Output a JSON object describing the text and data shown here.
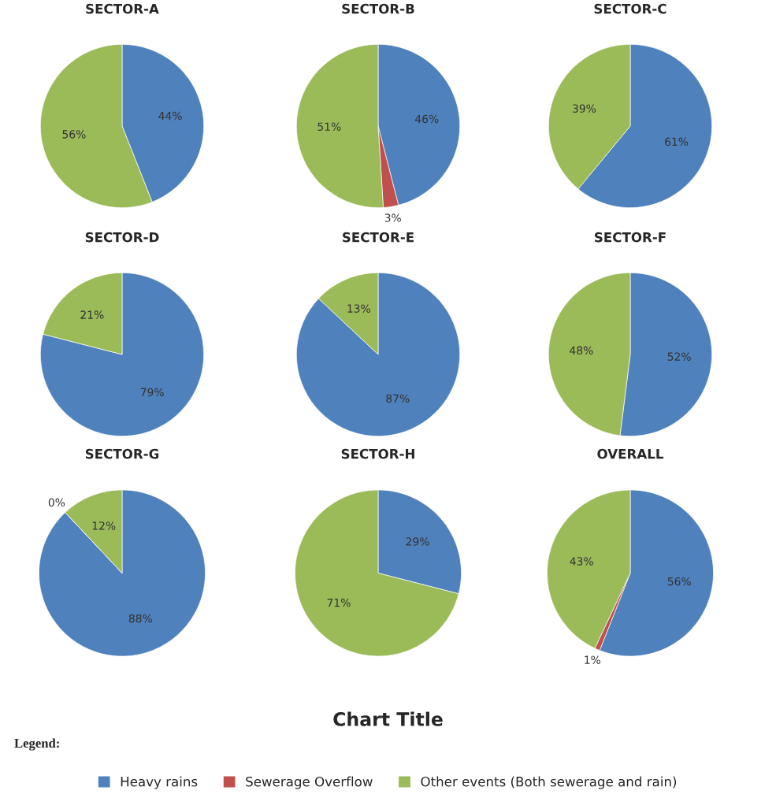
{
  "chart_data": [
    {
      "type": "pie",
      "title": "SECTOR-A",
      "categories": [
        null,
        null
      ],
      "values": [
        44,
        56
      ],
      "colors": [
        "#4f81bd",
        "#9bbb59"
      ],
      "value_labels": [
        "44%",
        "56%"
      ]
    },
    {
      "type": "pie",
      "title": "SECTOR-B",
      "categories": [
        null,
        null,
        null
      ],
      "values": [
        46,
        3,
        51
      ],
      "colors": [
        "#4f81bd",
        "#c0504d",
        "#9bbb59"
      ],
      "value_labels": [
        "46%",
        "3%",
        "51%"
      ]
    },
    {
      "type": "pie",
      "title": "SECTOR-C",
      "categories": [
        null,
        null
      ],
      "values": [
        61,
        39
      ],
      "colors": [
        "#4f81bd",
        "#9bbb59"
      ],
      "value_labels": [
        "61%",
        "39%"
      ]
    },
    {
      "type": "pie",
      "title": "SECTOR-D",
      "categories": [
        null,
        null
      ],
      "values": [
        79,
        21
      ],
      "colors": [
        "#4f81bd",
        "#9bbb59"
      ],
      "value_labels": [
        "79%",
        "21%"
      ]
    },
    {
      "type": "pie",
      "title": "SECTOR-E",
      "categories": [
        null,
        null
      ],
      "values": [
        87,
        13
      ],
      "colors": [
        "#4f81bd",
        "#9bbb59"
      ],
      "value_labels": [
        "87%",
        "13%"
      ]
    },
    {
      "type": "pie",
      "title": "SECTOR-F",
      "categories": [
        null,
        null
      ],
      "values": [
        52,
        48
      ],
      "colors": [
        "#4f81bd",
        "#9bbb59"
      ],
      "value_labels": [
        "52%",
        "48%"
      ]
    },
    {
      "type": "pie",
      "title": "SECTOR-G",
      "categories": [
        null,
        null,
        null
      ],
      "values": [
        88,
        0,
        12
      ],
      "colors": [
        "#4f81bd",
        "#c0504d",
        "#9bbb59"
      ],
      "value_labels": [
        "88%",
        "0%",
        "12%"
      ]
    },
    {
      "type": "pie",
      "title": "SECTOR-H",
      "categories": [
        null,
        null
      ],
      "values": [
        29,
        71
      ],
      "colors": [
        "#4f81bd",
        "#9bbb59"
      ],
      "value_labels": [
        "29%",
        "71%"
      ]
    },
    {
      "type": "pie",
      "title": "OVERALL",
      "categories": [
        "Heavy rains",
        "Sewerage Overflow",
        "Other events (Both sewerage and rain)"
      ],
      "values": [
        56,
        1,
        43
      ],
      "colors": [
        "#4f81bd",
        "#c0504d",
        "#9bbb59"
      ],
      "value_labels": [
        "56%",
        "1%",
        "43%"
      ],
      "legend": "bottom",
      "annotations": [
        "Chart Title",
        "Legend:"
      ]
    }
  ]
}
